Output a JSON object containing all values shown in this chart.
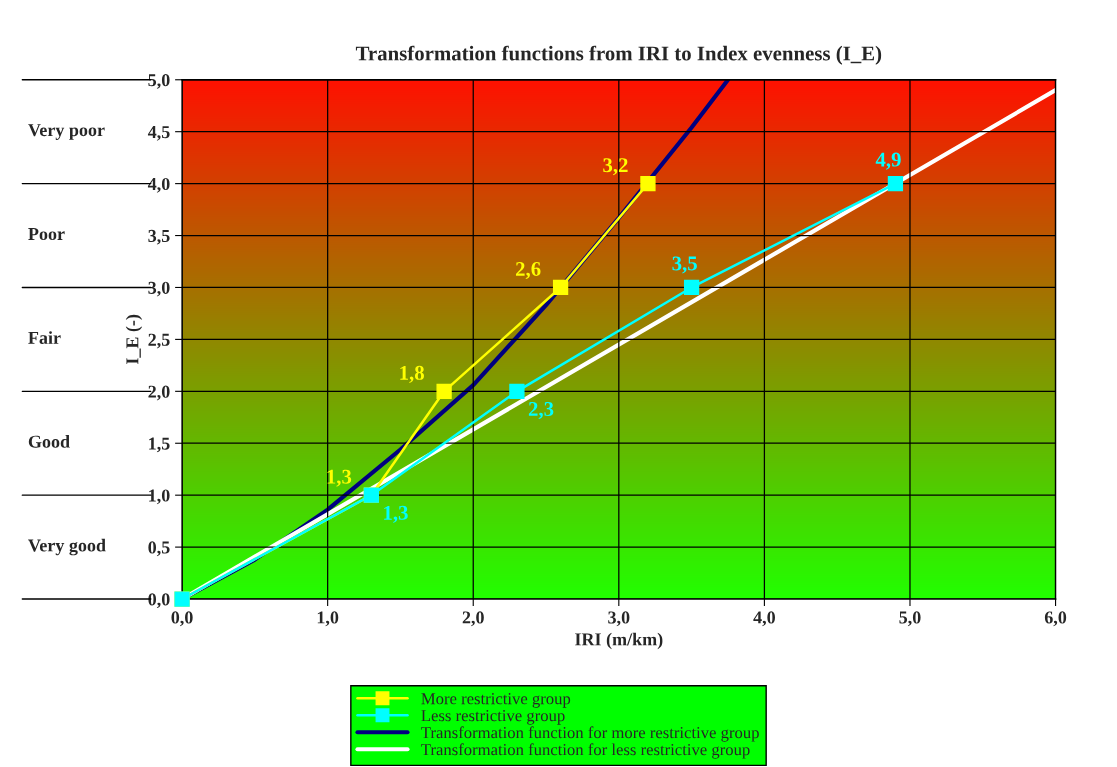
{
  "chart_data": {
    "type": "line",
    "title": "Transformation functions from IRI to Index evenness (I_E)",
    "xlabel": "IRI (m/km)",
    "ylabel": "I_E (-)",
    "xlim": [
      0,
      6
    ],
    "ylim": [
      0,
      5
    ],
    "xticks": [
      {
        "value": 0,
        "label": "0,0"
      },
      {
        "value": 1,
        "label": "1,0"
      },
      {
        "value": 2,
        "label": "2,0"
      },
      {
        "value": 3,
        "label": "3,0"
      },
      {
        "value": 4,
        "label": "4,0"
      },
      {
        "value": 5,
        "label": "5,0"
      },
      {
        "value": 6,
        "label": "6,0"
      }
    ],
    "yticks": [
      {
        "value": 0,
        "label": "0,0"
      },
      {
        "value": 0.5,
        "label": "0,5"
      },
      {
        "value": 1,
        "label": "1,0"
      },
      {
        "value": 1.5,
        "label": "1,5"
      },
      {
        "value": 2,
        "label": "2,0"
      },
      {
        "value": 2.5,
        "label": "2,5"
      },
      {
        "value": 3,
        "label": "3,0"
      },
      {
        "value": 3.5,
        "label": "3,5"
      },
      {
        "value": 4,
        "label": "4,0"
      },
      {
        "value": 4.5,
        "label": "4,5"
      },
      {
        "value": 5,
        "label": "5,0"
      }
    ],
    "grid": true,
    "legend": "bottom",
    "series": [
      {
        "name": "More restrictive group",
        "color": "#ffff00",
        "marker": "square",
        "x": [
          0,
          1.3,
          1.8,
          2.6,
          3.2
        ],
        "values": [
          0,
          1,
          2,
          3,
          4
        ]
      },
      {
        "name": "Less restrictive group",
        "color": "#00ffff",
        "marker": "square",
        "x": [
          0,
          1.3,
          2.3,
          3.5,
          4.9
        ],
        "values": [
          0,
          1,
          2,
          3,
          4
        ]
      },
      {
        "name": "Transformation function for more restrictive group",
        "color": "#000080",
        "marker": "none",
        "x": [
          0,
          0.5,
          1.0,
          1.5,
          2.0,
          2.5,
          3.0,
          3.5,
          3.75
        ],
        "values": [
          0,
          0.38,
          0.86,
          1.44,
          2.06,
          2.83,
          3.67,
          4.54,
          5.0
        ]
      },
      {
        "name": "Transformation function for less restrictive group",
        "color": "#ffffff",
        "marker": "none",
        "x": [
          0,
          6
        ],
        "values": [
          0,
          4.9
        ]
      }
    ],
    "annotations": [
      {
        "text": "1,3",
        "x": 1.3,
        "y": 1
      },
      {
        "text": "1,8",
        "x": 1.8,
        "y": 2
      },
      {
        "text": "2,6",
        "x": 2.6,
        "y": 3
      },
      {
        "text": "3,2",
        "x": 3.2,
        "y": 4
      },
      {
        "text": "1,3",
        "x": 1.3,
        "y": 1
      },
      {
        "text": "2,3",
        "x": 2.3,
        "y": 2
      },
      {
        "text": "3,5",
        "x": 3.5,
        "y": 3
      },
      {
        "text": "4,9",
        "x": 4.9,
        "y": 4
      },
      "Very poor",
      "Poor",
      "Fair",
      "Good",
      "Very good"
    ]
  }
}
